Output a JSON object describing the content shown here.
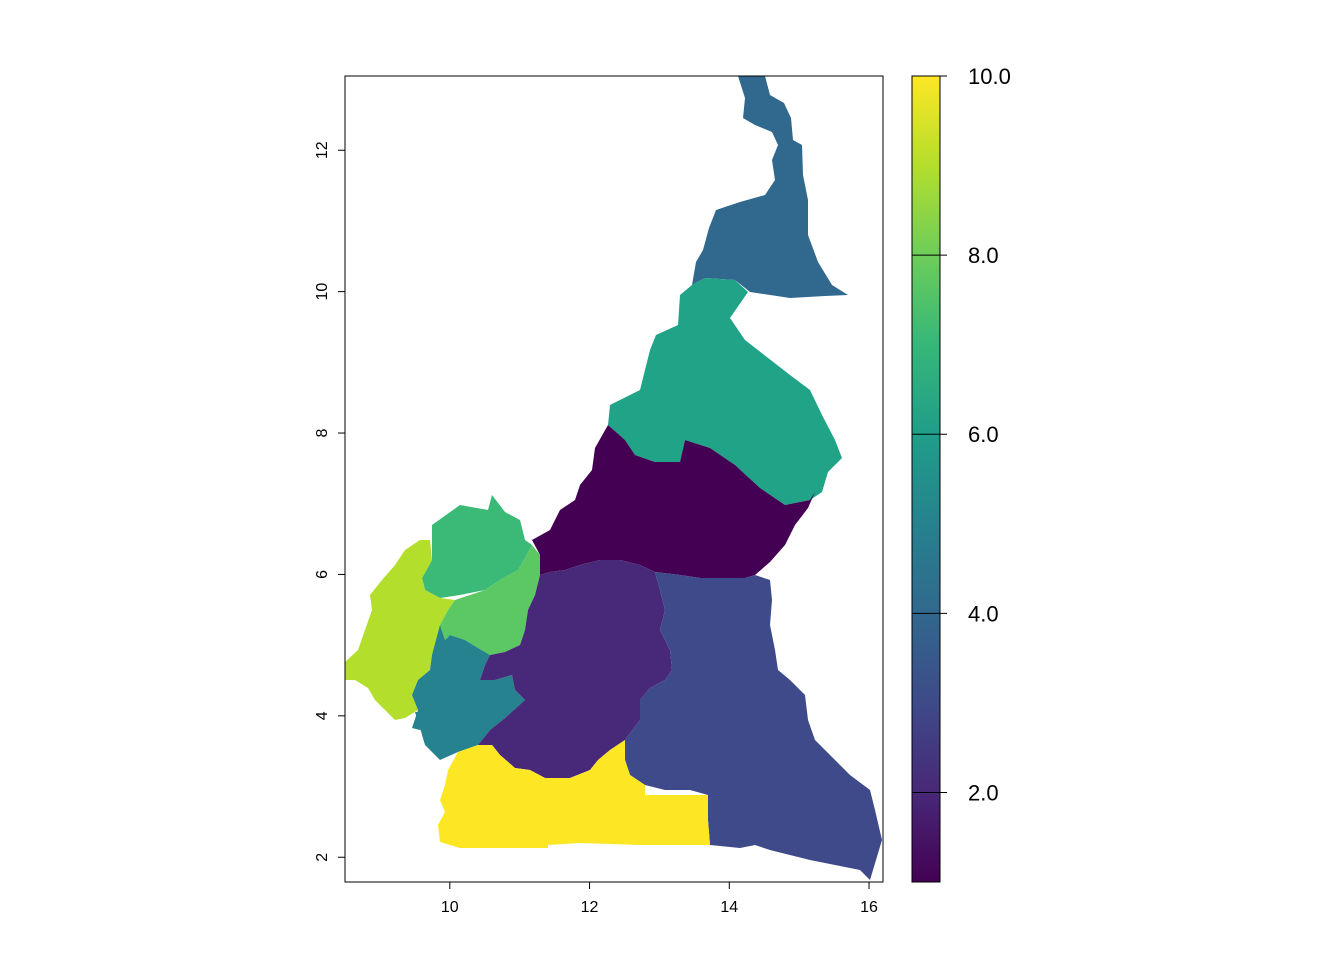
{
  "map": {
    "x_axis": {
      "range": [
        8.5,
        16.2
      ],
      "ticks": [
        {
          "value": 10,
          "label": "10"
        },
        {
          "value": 12,
          "label": "12"
        },
        {
          "value": 14,
          "label": "14"
        },
        {
          "value": 16,
          "label": "16"
        }
      ]
    },
    "y_axis": {
      "range": [
        1.65,
        13.05
      ],
      "ticks": [
        {
          "value": 2,
          "label": "2"
        },
        {
          "value": 4,
          "label": "4"
        },
        {
          "value": 6,
          "label": "6"
        },
        {
          "value": 8,
          "label": "8"
        },
        {
          "value": 10,
          "label": "10"
        },
        {
          "value": 12,
          "label": "12"
        }
      ]
    },
    "regions": [
      {
        "value": 4,
        "color": "#31688E"
      },
      {
        "value": 6,
        "color": "#20A386"
      },
      {
        "value": 1,
        "color": "#440154"
      },
      {
        "value": 7,
        "color": "#3ABA76"
      },
      {
        "value": 9,
        "color": "#B4DE2C"
      },
      {
        "value": 8,
        "color": "#5CC863"
      },
      {
        "value": 5,
        "color": "#26828E"
      },
      {
        "value": 2,
        "color": "#482878"
      },
      {
        "value": 3,
        "color": "#3E4A89"
      },
      {
        "value": 10,
        "color": "#FDE725"
      }
    ]
  },
  "legend": {
    "range": [
      1,
      10
    ],
    "ticks": [
      {
        "value": 2,
        "label": "2.0"
      },
      {
        "value": 4,
        "label": "4.0"
      },
      {
        "value": 6,
        "label": "6.0"
      },
      {
        "value": 8,
        "label": "8.0"
      },
      {
        "value": 10,
        "label": "10.0"
      }
    ],
    "gradient": [
      "#440154",
      "#482878",
      "#3E4A89",
      "#31688E",
      "#26828E",
      "#1F9E89",
      "#35B779",
      "#6DCD59",
      "#B4DE2C",
      "#FDE725"
    ]
  }
}
